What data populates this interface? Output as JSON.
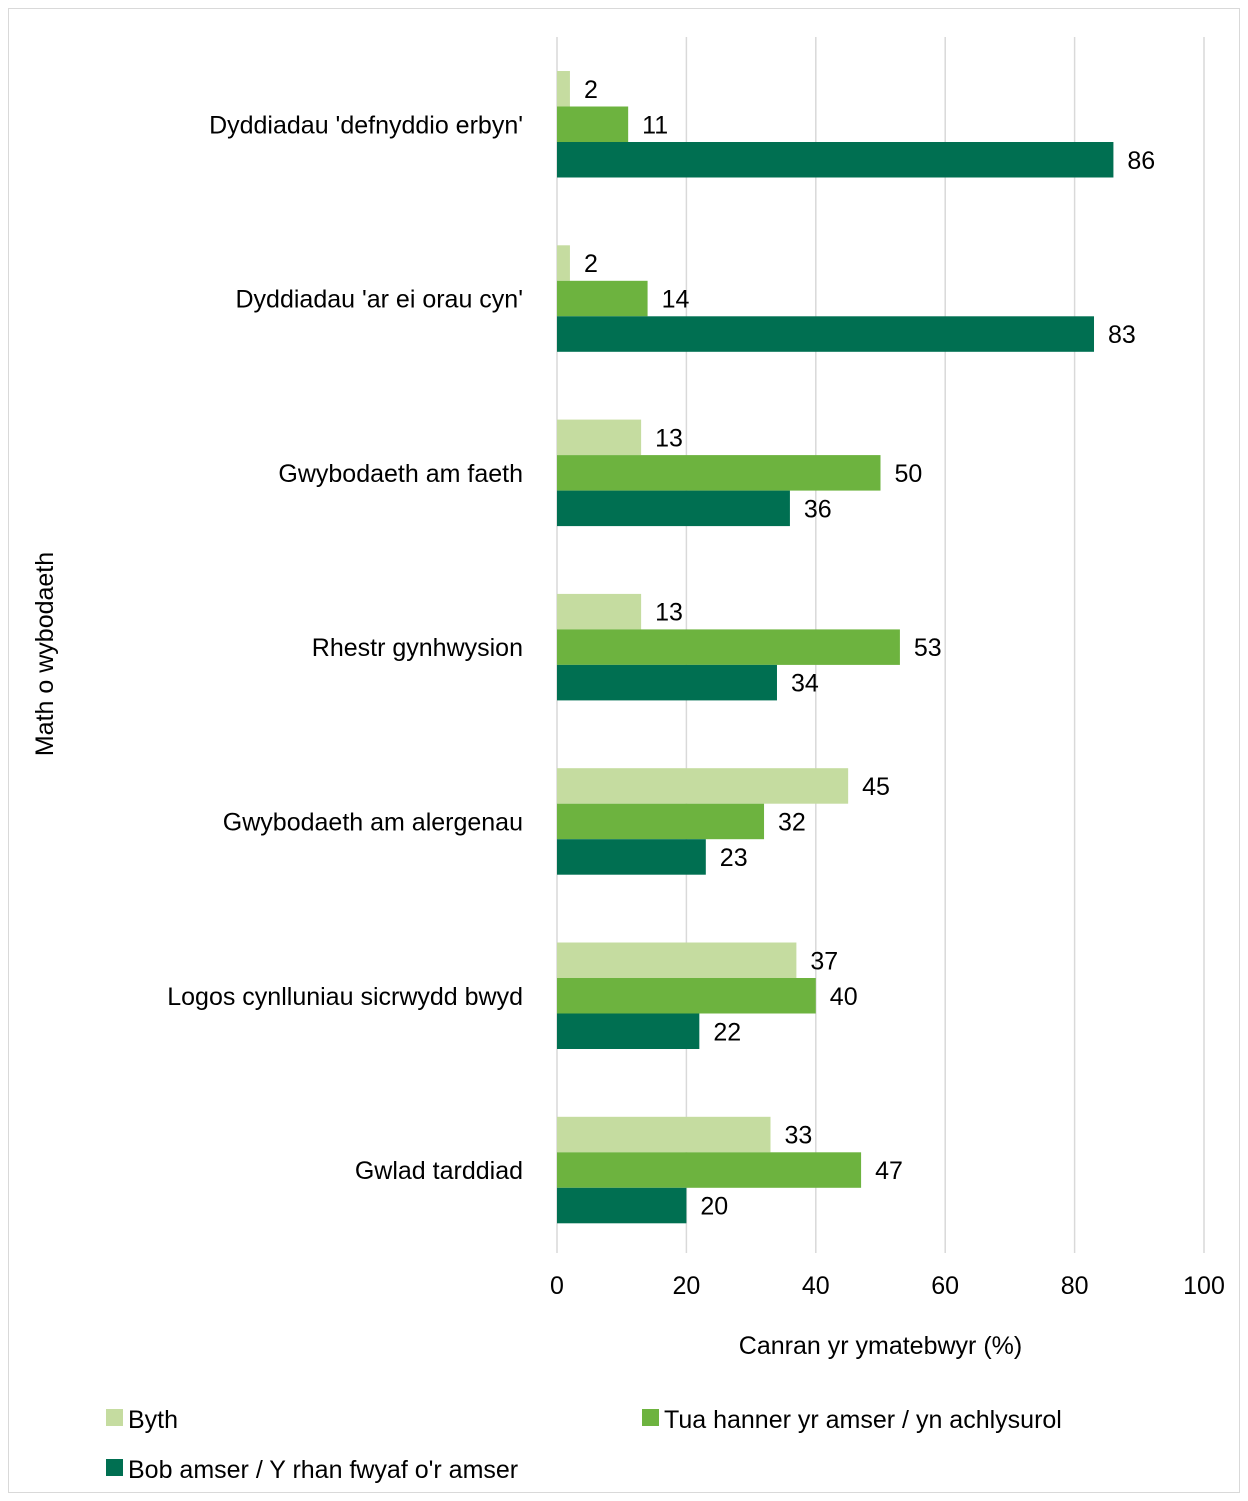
{
  "chart_data": {
    "type": "bar",
    "orientation": "horizontal",
    "categories": [
      "Dyddiadau 'defnyddio erbyn'",
      "Dyddiadau 'ar ei orau cyn'",
      "Gwybodaeth am faeth",
      "Rhestr gynhwysion",
      "Gwybodaeth am alergenau",
      "Logos cynlluniau sicrwydd bwyd",
      "Gwlad tarddiad"
    ],
    "series": [
      {
        "name": "Byth",
        "color": "#c5dca0",
        "values": [
          2,
          2,
          13,
          13,
          45,
          37,
          33
        ]
      },
      {
        "name": "Tua hanner yr amser / yn achlysurol",
        "color": "#6db33f",
        "values": [
          11,
          14,
          50,
          53,
          32,
          40,
          47
        ]
      },
      {
        "name": "Bob amser / Y rhan fwyaf o'r amser",
        "color": "#006f51",
        "values": [
          86,
          83,
          36,
          34,
          23,
          22,
          20
        ]
      }
    ],
    "xlabel": "Canran yr ymatebwyr (%)",
    "ylabel": "Math o wybodaeth",
    "xlim": [
      0,
      100
    ],
    "xticks": [
      0,
      20,
      40,
      60,
      80,
      100
    ],
    "grid": "vertical",
    "legend_position": "bottom"
  }
}
